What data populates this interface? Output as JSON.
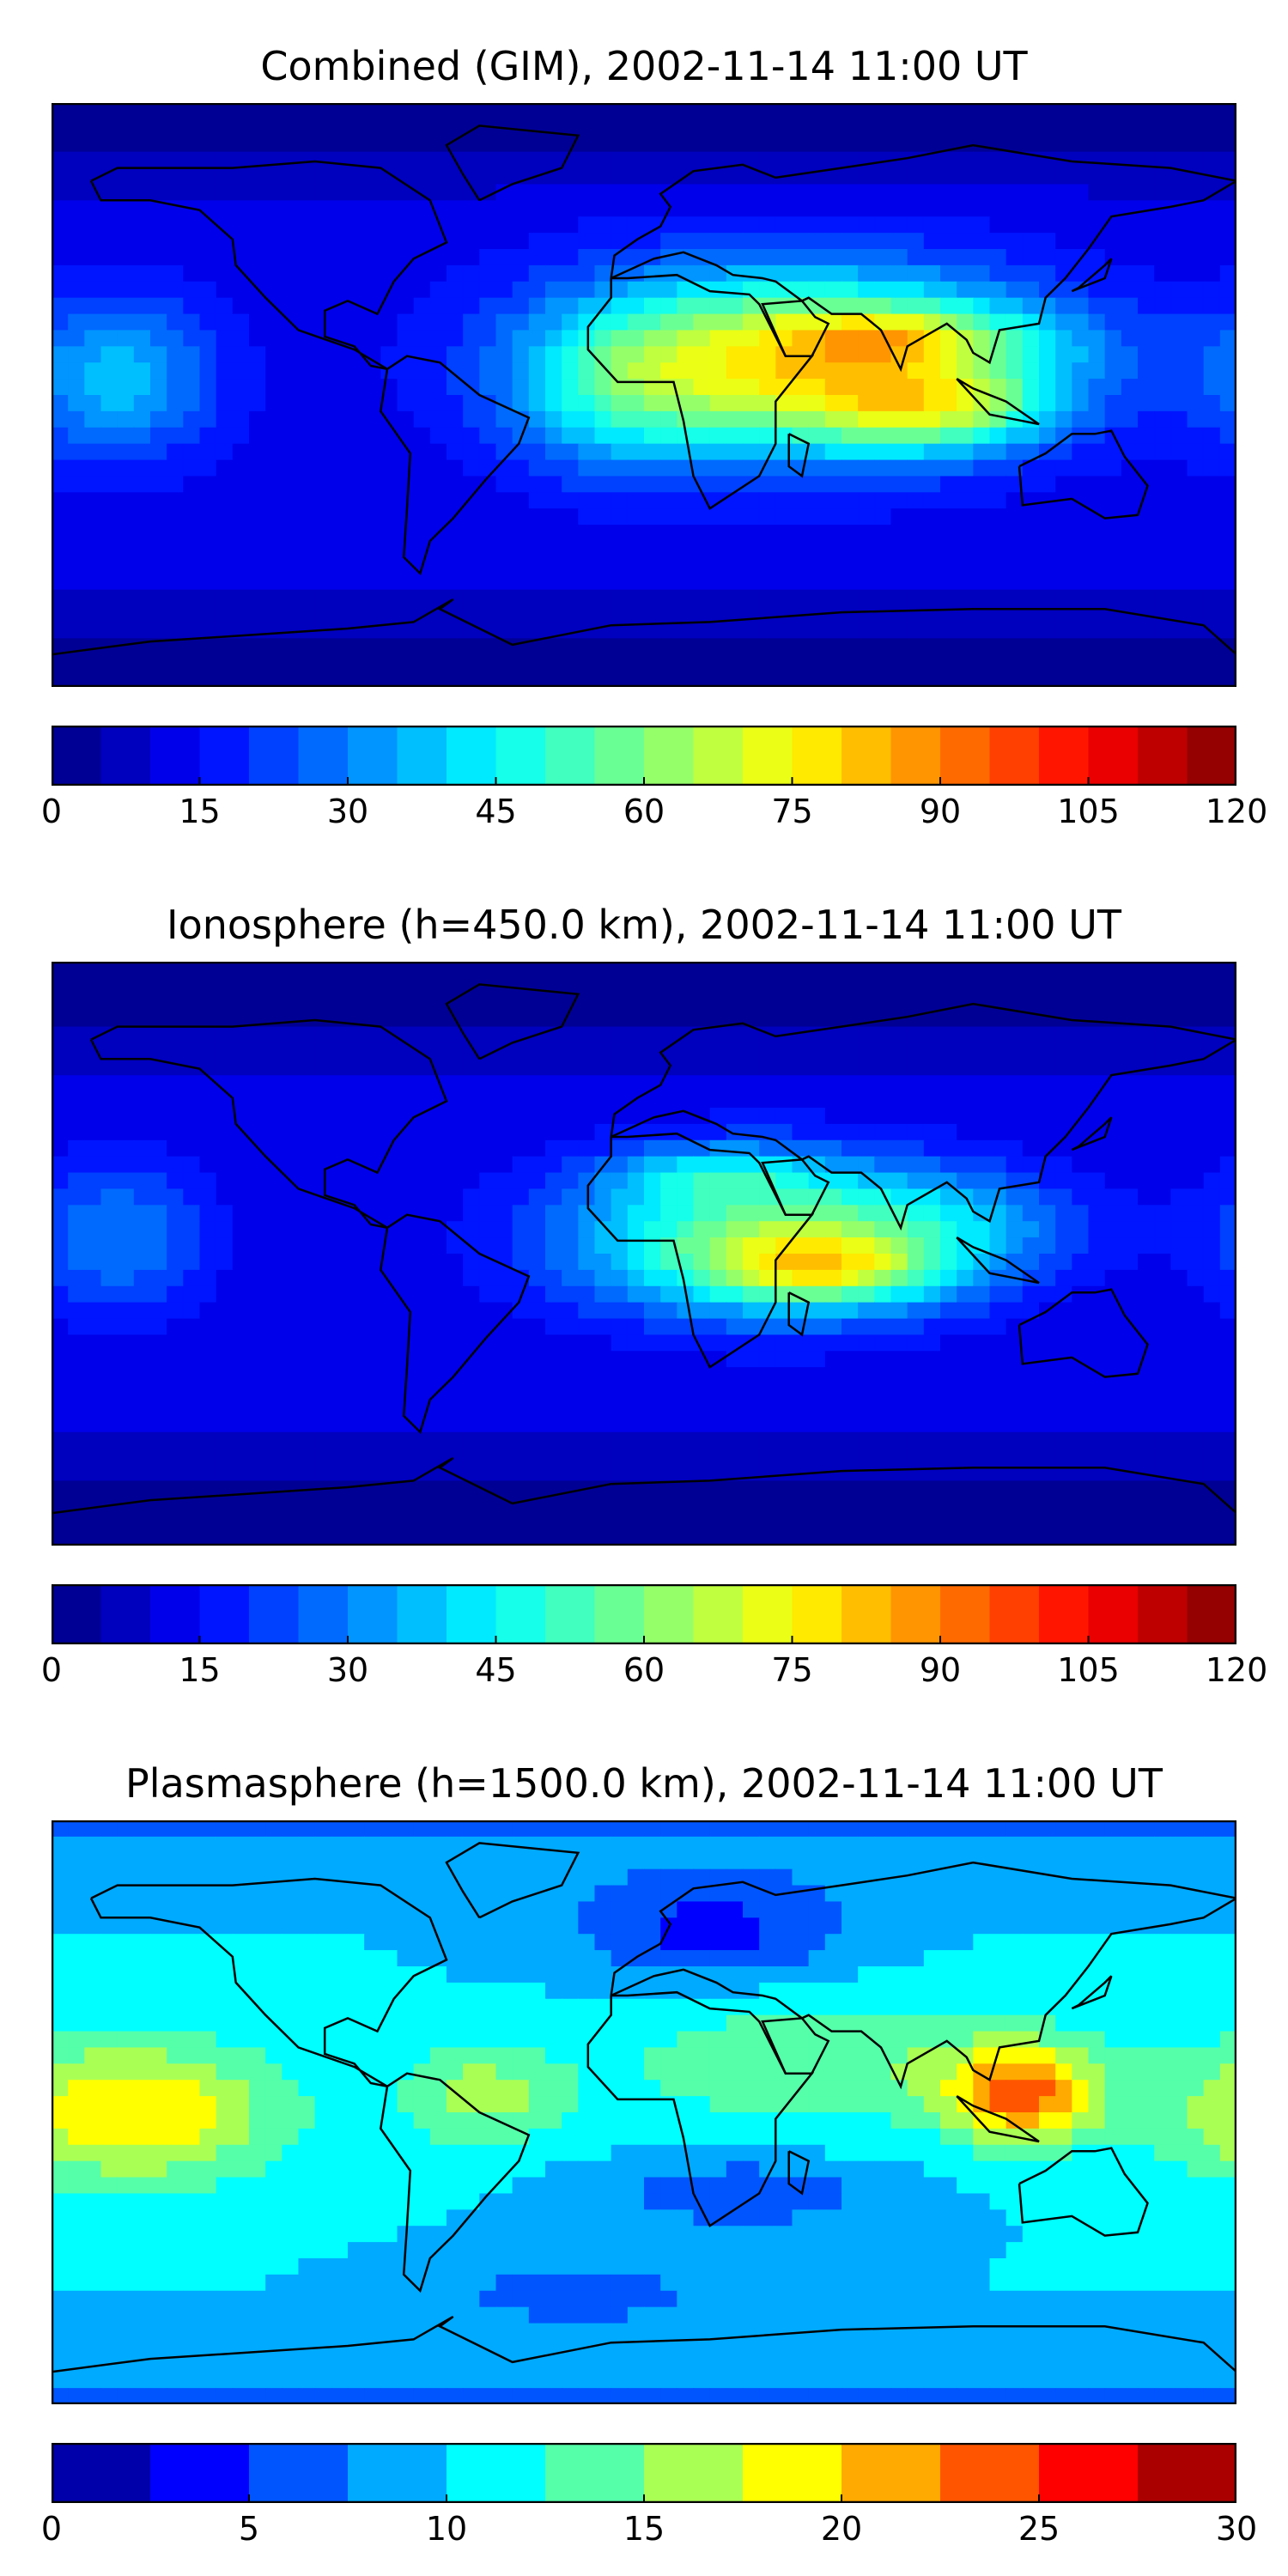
{
  "chart_data": [
    {
      "type": "heatmap",
      "title": "Combined (GIM), 2002-11-14 11:00 UT",
      "colorbar": {
        "min": 0,
        "max": 120,
        "levels": 24,
        "ticks": [
          0,
          15,
          30,
          45,
          60,
          75,
          90,
          105,
          120
        ]
      },
      "blobs": [
        {
          "lon": 45,
          "lat": 10,
          "rlon": 70,
          "rlat": 28,
          "v": 65
        },
        {
          "lon": 90,
          "lat": -5,
          "rlon": 35,
          "rlat": 12,
          "v": 30
        },
        {
          "lon": 75,
          "lat": 18,
          "rlon": 30,
          "rlat": 8,
          "v": 18
        },
        {
          "lon": -10,
          "lat": 0,
          "rlon": 30,
          "rlat": 25,
          "v": 15
        },
        {
          "lon": 110,
          "lat": 15,
          "rlon": 40,
          "rlat": 15,
          "v": 12
        },
        {
          "lon": -160,
          "lat": 5,
          "rlon": 30,
          "rlat": 25,
          "v": 25
        }
      ],
      "base": 12
    },
    {
      "type": "heatmap",
      "title": "Ionosphere  (h=450.0 km), 2002-11-14 11:00 UT",
      "colorbar": {
        "min": 0,
        "max": 120,
        "levels": 24,
        "ticks": [
          0,
          15,
          30,
          45,
          60,
          75,
          90,
          105,
          120
        ]
      },
      "blobs": [
        {
          "lon": 40,
          "lat": 5,
          "rlon": 65,
          "rlat": 25,
          "v": 50
        },
        {
          "lon": 55,
          "lat": -5,
          "rlon": 35,
          "rlat": 10,
          "v": 30
        },
        {
          "lon": 20,
          "lat": 25,
          "rlon": 30,
          "rlat": 8,
          "v": 15
        },
        {
          "lon": 100,
          "lat": 10,
          "rlon": 40,
          "rlat": 15,
          "v": 10
        },
        {
          "lon": -160,
          "lat": 5,
          "rlon": 30,
          "rlat": 25,
          "v": 20
        }
      ],
      "base": 10
    },
    {
      "type": "heatmap",
      "title": "Plasmasphere (h=1500.0 km), 2002-11-14 11:00 UT",
      "colorbar": {
        "min": 0,
        "max": 30,
        "levels": 12,
        "ticks": [
          0,
          5,
          10,
          15,
          20,
          25,
          30
        ]
      },
      "blobs": [
        {
          "lon": -155,
          "lat": 0,
          "rlon": 45,
          "rlat": 22,
          "v": 10
        },
        {
          "lon": 115,
          "lat": 5,
          "rlon": 22,
          "rlat": 15,
          "v": 12
        },
        {
          "lon": -50,
          "lat": 5,
          "rlon": 25,
          "rlat": 15,
          "v": 6
        },
        {
          "lon": 60,
          "lat": 15,
          "rlon": 70,
          "rlat": 20,
          "v": 5
        },
        {
          "lon": 20,
          "lat": 55,
          "rlon": 40,
          "rlat": 15,
          "v": -6
        },
        {
          "lon": 30,
          "lat": -25,
          "rlon": 40,
          "rlat": 10,
          "v": -5
        },
        {
          "lon": -20,
          "lat": -55,
          "rlon": 40,
          "rlat": 10,
          "v": -4
        }
      ],
      "base": 10
    }
  ]
}
